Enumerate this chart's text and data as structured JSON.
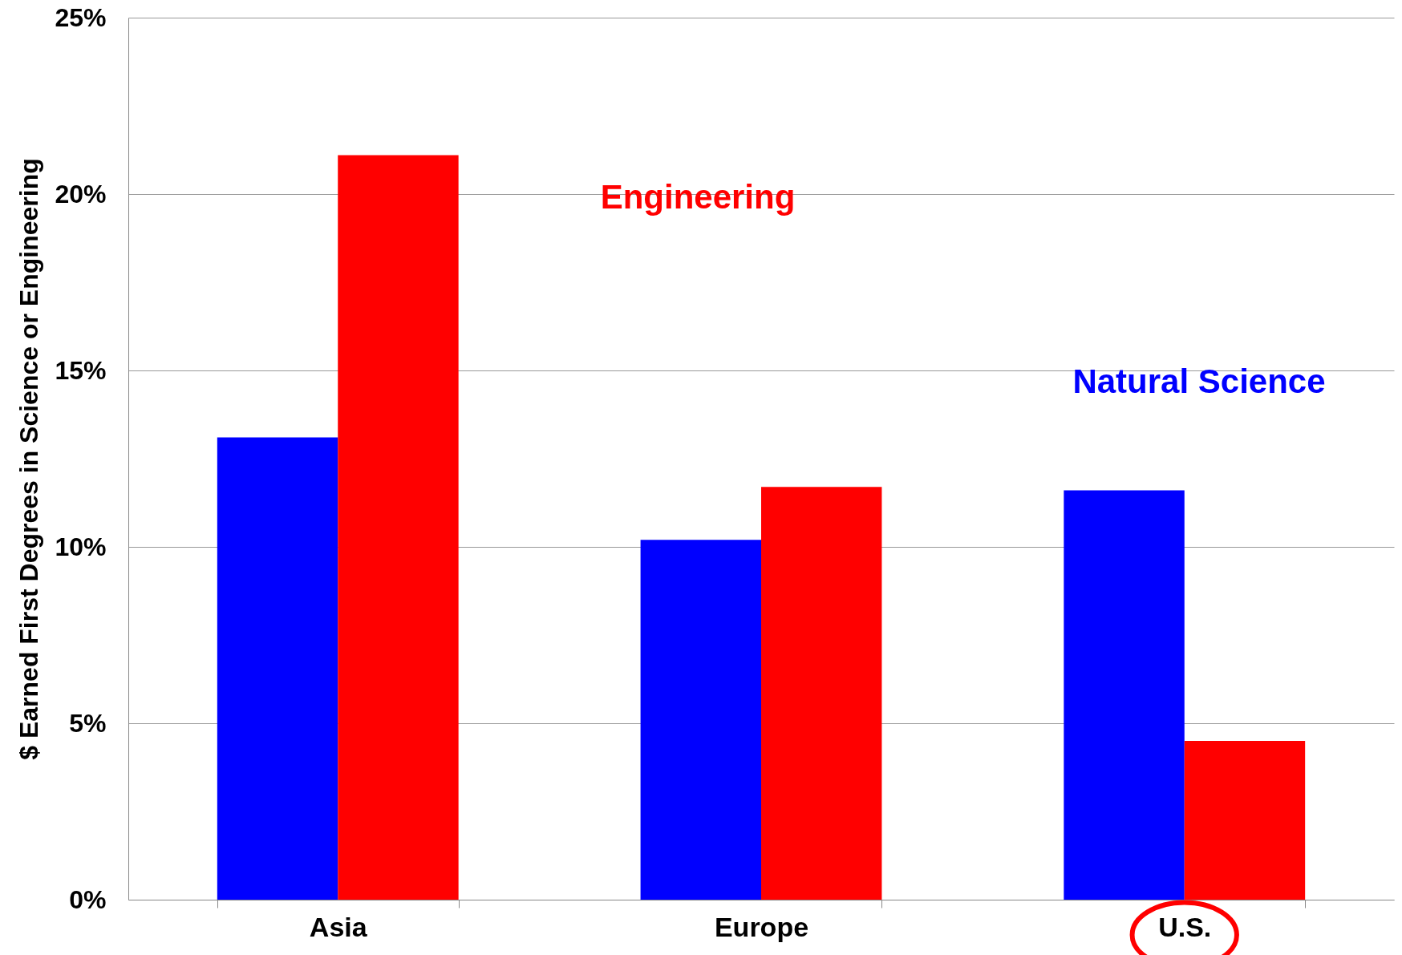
{
  "chart_data": {
    "type": "bar",
    "ylabel": "$ Earned First Degrees in Science or Engineering",
    "categories": [
      "Asia",
      "Europe",
      "U.S."
    ],
    "series": [
      {
        "name": "Natural Science",
        "color": "#0000ff",
        "values": [
          13.1,
          10.2,
          11.6
        ]
      },
      {
        "name": "Engineering",
        "color": "#ff0000",
        "values": [
          21.1,
          11.7,
          4.5
        ]
      }
    ],
    "ylim": [
      0,
      25
    ],
    "yticks": [
      {
        "value": 0,
        "label": "0%"
      },
      {
        "value": 5,
        "label": "5%"
      },
      {
        "value": 10,
        "label": "10%"
      },
      {
        "value": 15,
        "label": "15%"
      },
      {
        "value": 20,
        "label": "20%"
      },
      {
        "value": 25,
        "label": "25%"
      }
    ],
    "grid": "y",
    "legend": false
  }
}
